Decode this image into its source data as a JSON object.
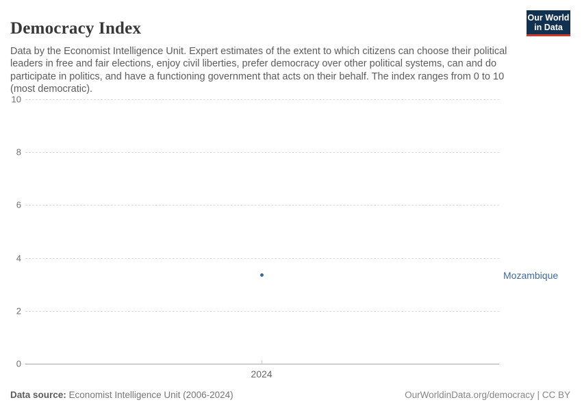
{
  "header": {
    "title": "Democracy Index",
    "subtitle": "Data by the Economist Intelligence Unit. Expert estimates of the extent to which citizens can choose their political leaders in free and fair elections, enjoy civil liberties, prefer democracy over other political systems, can and do participate in politics, and have a functioning government that acts on their behalf. The index ranges from 0 to 10 (most democratic).",
    "logo": {
      "line1": "Our World",
      "line2": "in Data"
    }
  },
  "chart_data": {
    "type": "scatter",
    "title": "Democracy Index",
    "x": [
      2024
    ],
    "series": [
      {
        "name": "Mozambique",
        "values": [
          3.35
        ],
        "color": "#3d6a9e"
      }
    ],
    "xlabel": "",
    "ylabel": "",
    "ylim": [
      0,
      10
    ],
    "yticks": [
      0,
      2,
      4,
      6,
      8,
      10
    ],
    "xticks": [
      "2024"
    ],
    "grid": "horizontal-dashed",
    "legend_position": "entity-label-right"
  },
  "footer": {
    "source_label": "Data source:",
    "source_value": "Economist Intelligence Unit (2006-2024)",
    "link": "OurWorldinData.org/democracy | CC BY"
  },
  "colors": {
    "series_blue": "#3d6a9e",
    "logo_navy": "#12304f",
    "logo_red": "#d2352c",
    "gridline": "#dcdcdc",
    "axis": "#a6a6a6"
  }
}
